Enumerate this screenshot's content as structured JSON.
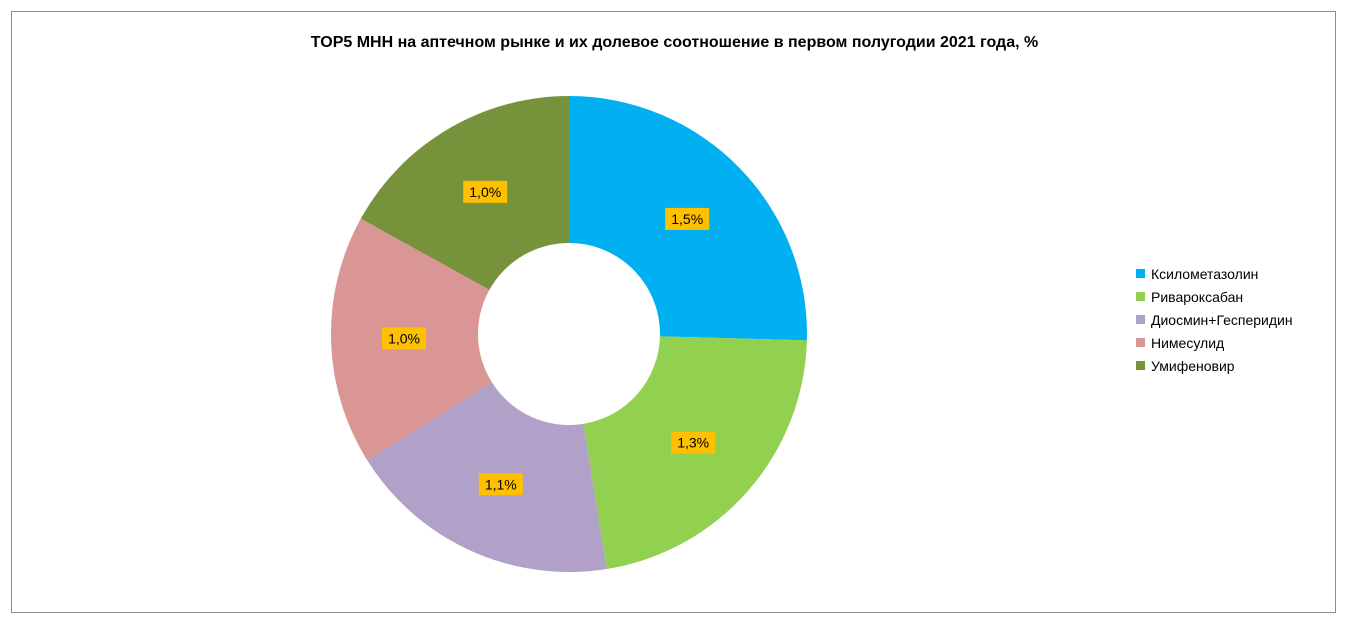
{
  "chart_data": {
    "type": "pie",
    "title": "TOP5 МНН на аптечном рынке и их долевое соотношение  в первом полугодии 2021 года, %",
    "categories": [
      "Ксилометазолин",
      "Ривароксабан",
      "Диосмин+Гесперидин",
      "Нимесулид",
      "Умифеновир"
    ],
    "values": [
      1.5,
      1.3,
      1.1,
      1.0,
      1.0
    ],
    "data_labels": [
      "1,5%",
      "1,3%",
      "1,1%",
      "1,0%",
      "1,0%"
    ],
    "colors": [
      "#00b0f0",
      "#92d050",
      "#b1a0c7",
      "#da9694",
      "#76933c"
    ],
    "label_background": "#ffc000",
    "donut": true,
    "legend_position": "right"
  }
}
